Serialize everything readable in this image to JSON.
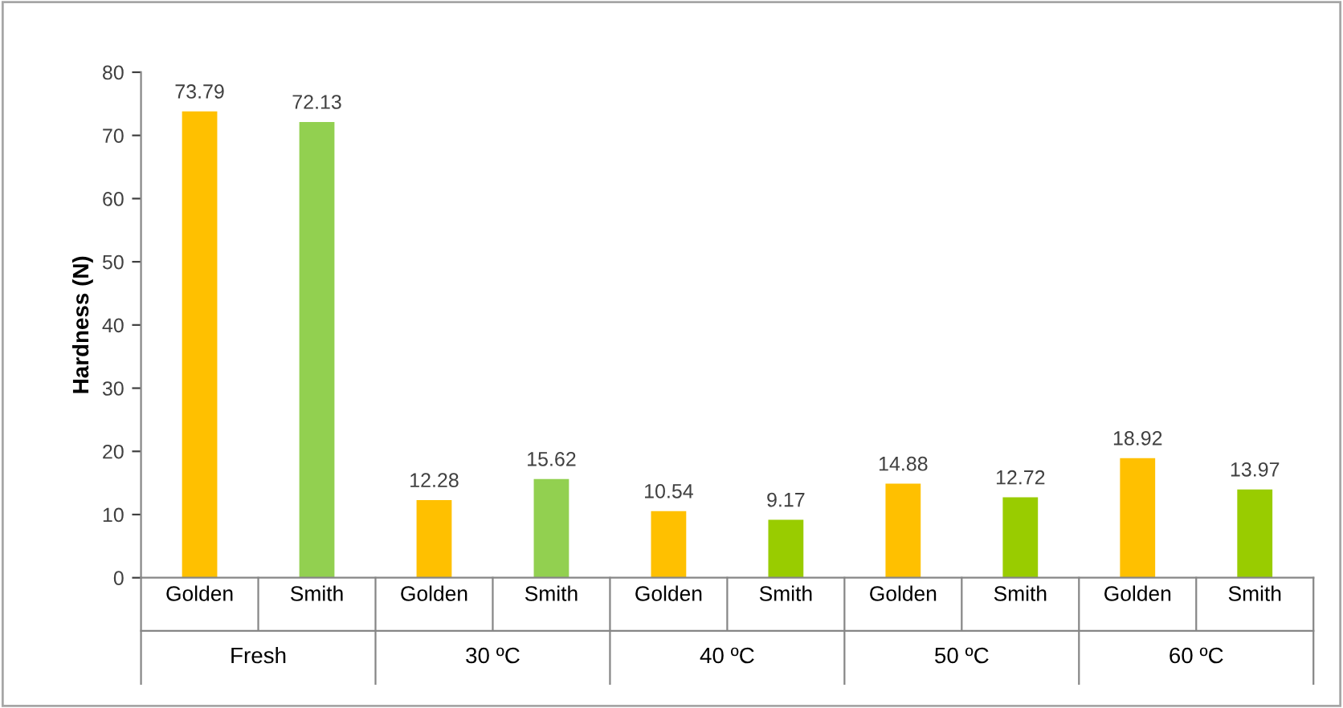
{
  "chart_data": {
    "type": "bar",
    "ylabel": "Hardness (N)",
    "categories": [
      "Golden",
      "Smith",
      "Golden",
      "Smith",
      "Golden",
      "Smith",
      "Golden",
      "Smith",
      "Golden",
      "Smith"
    ],
    "values": [
      73.79,
      72.13,
      12.28,
      15.62,
      10.54,
      9.17,
      14.88,
      12.72,
      18.92,
      13.97
    ],
    "colors": [
      "#ffc000",
      "#92d050",
      "#ffc000",
      "#92d050",
      "#ffc000",
      "#99cc00",
      "#ffc000",
      "#99cc00",
      "#ffc000",
      "#99cc00"
    ],
    "annotations": [
      "Fresh",
      "30 ºC",
      "40 ºC",
      "50 ºC",
      "60 ºC"
    ],
    "ylim": [
      0,
      80
    ],
    "yticks": [
      0,
      10,
      20,
      30,
      40,
      50,
      60,
      70,
      80
    ],
    "data_labels": true,
    "grid": false,
    "legend": false
  }
}
